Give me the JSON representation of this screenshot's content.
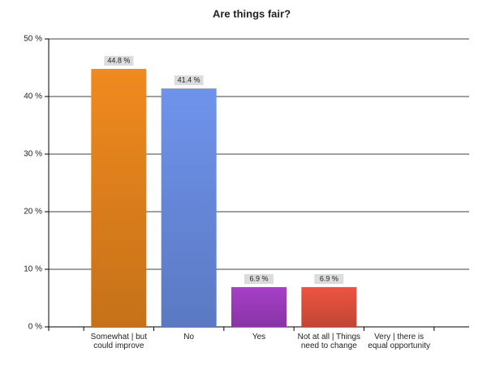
{
  "chart_data": {
    "type": "bar",
    "title": "Are things fair?",
    "categories": [
      "Somewhat | but could improve",
      "No",
      "Yes",
      "Not at all | Things need to change",
      "Very | there is equal opportunity"
    ],
    "values": [
      44.8,
      41.4,
      6.9,
      6.9,
      0
    ],
    "value_labels": [
      "44.8 %",
      "41.4 %",
      "6.9 %",
      "6.9 %",
      null
    ],
    "colors": [
      "#f08a1e",
      "#6f93ec",
      "#a640c8",
      "#ec5440",
      "#888888"
    ],
    "ylim": [
      0,
      50
    ],
    "yticks": [
      {
        "value": 0,
        "label": "0 %"
      },
      {
        "value": 10,
        "label": "10 %"
      },
      {
        "value": 20,
        "label": "20 %"
      },
      {
        "value": 30,
        "label": "30 %"
      },
      {
        "value": 40,
        "label": "40 %"
      },
      {
        "value": 50,
        "label": "50 %"
      }
    ],
    "grid": true
  }
}
